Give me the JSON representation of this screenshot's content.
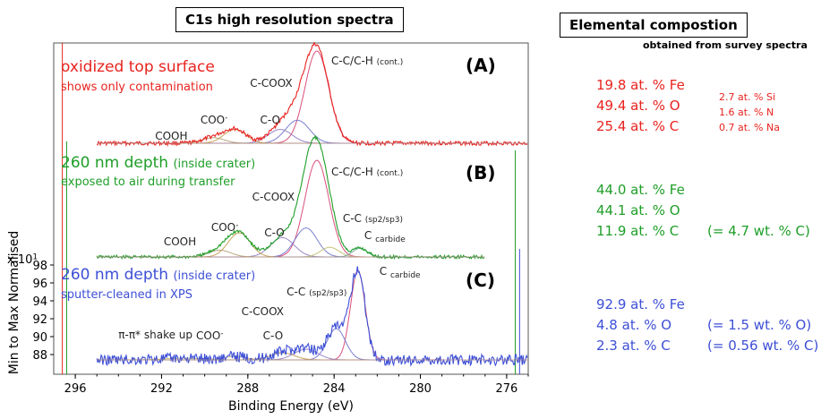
{
  "headers": {
    "left_title": "C1s high resolution spectra",
    "right_title": "Elemental compostion",
    "right_subtitle": "obtained from survey spectra"
  },
  "axis": {
    "xlabel": "Binding Energy (eV)",
    "ylabel": "Min to Max Normalised",
    "multiplier_prefix": "x 10",
    "multiplier_exp": "1"
  },
  "composition": {
    "A": {
      "main": [
        "19.8 at. % Fe",
        "49.4 at. % O",
        "25.4 at. % C"
      ],
      "minor": [
        "2.7 at. % Si",
        "1.6 at. % N",
        "0.7 at. % Na"
      ],
      "color": "#e8231f"
    },
    "B": {
      "main": [
        "44.0 at. % Fe",
        "44.1 at. % O",
        "11.9 at. % C"
      ],
      "note": "(= 4.7 wt. % C)",
      "color": "#1e9e28"
    },
    "C": {
      "main": [
        "92.9 at. % Fe",
        "4.8 at. % O",
        "2.3 at. % C"
      ],
      "notes": [
        "(= 1.5 wt. % O)",
        "(= 0.56 wt. % C)"
      ],
      "color": "#3d4fd6"
    }
  },
  "chart_data": {
    "type": "line",
    "xlabel": "Binding Energy (eV)",
    "ylabel": "Min to Max Normalised",
    "xlim": [
      297,
      275
    ],
    "x_reversed": true,
    "x_ticks": [
      296,
      292,
      288,
      284,
      280,
      276
    ],
    "y_ticks": [
      88,
      90,
      92,
      94,
      96,
      98
    ],
    "y_multiplier": "x 10^1",
    "panels": [
      {
        "label": "(A)",
        "title": "oxidized top surface",
        "subtitle": "shows only contamination",
        "color": "#e8231f",
        "x_range": [
          295,
          275
        ],
        "peaks": [
          {
            "label": "C-C/C-H",
            "sub": "(cont.)",
            "center": 284.8,
            "amplitude": 1.0,
            "width": 1.3
          },
          {
            "label": "C-COOX",
            "center": 285.7,
            "amplitude": 0.25,
            "width": 1.3
          },
          {
            "label": "C-O",
            "center": 286.5,
            "amplitude": 0.15,
            "width": 1.3
          },
          {
            "label": "COO-",
            "center": 288.6,
            "amplitude": 0.15,
            "width": 1.2
          },
          {
            "label": "COOH",
            "center": 289.6,
            "amplitude": 0.06,
            "width": 1.2
          }
        ]
      },
      {
        "label": "(B)",
        "title": "260 nm depth",
        "title_note": "(inside crater)",
        "subtitle": "exposed to air during transfer",
        "color": "#1e9e28",
        "x_range": [
          295,
          277
        ],
        "peaks": [
          {
            "label": "C-C/C-H",
            "sub": "(cont.)",
            "center": 284.8,
            "amplitude": 1.0,
            "width": 1.3
          },
          {
            "label": "C-COOX",
            "center": 285.3,
            "amplitude": 0.3,
            "width": 1.2
          },
          {
            "label": "C-O",
            "center": 286.4,
            "amplitude": 0.2,
            "width": 1.3
          },
          {
            "label": "COO-",
            "center": 288.4,
            "amplitude": 0.25,
            "width": 1.2
          },
          {
            "label": "COOH",
            "center": 289.3,
            "amplitude": 0.07,
            "width": 1.2
          },
          {
            "label": "C-C",
            "sub": "(sp2/sp3)",
            "center": 284.2,
            "amplitude": 0.1,
            "width": 1.0
          },
          {
            "label": "C",
            "sub": "carbide",
            "center": 282.8,
            "amplitude": 0.09,
            "width": 0.8
          }
        ]
      },
      {
        "label": "(C)",
        "title": "260 nm depth",
        "title_note": "(inside crater)",
        "subtitle": "sputter-cleaned in XPS",
        "color": "#3d4fd6",
        "x_range": [
          295,
          275
        ],
        "y_range_shown": [
          87,
          98
        ],
        "peaks": [
          {
            "label": "C",
            "sub": "carbide",
            "center": 282.9,
            "amplitude": 1.0,
            "width": 0.8
          },
          {
            "label": "C-C",
            "sub": "(sp2/sp3)",
            "center": 283.9,
            "amplitude": 0.35,
            "width": 1.0
          },
          {
            "label": "C-COOX",
            "center": 285.3,
            "amplitude": 0.12,
            "width": 1.3
          },
          {
            "label": "C-O",
            "center": 286.4,
            "amplitude": 0.08,
            "width": 1.3
          },
          {
            "label": "COO-",
            "center": 288.6,
            "amplitude": 0.04,
            "width": 1.2
          },
          {
            "label": "π-π* shake up",
            "center": 291.0,
            "amplitude": 0.02,
            "width": 2.0
          }
        ]
      }
    ]
  }
}
